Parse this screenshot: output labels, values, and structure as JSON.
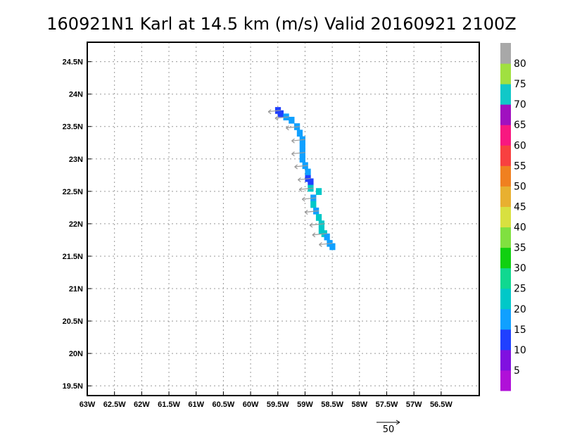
{
  "chart_data": {
    "type": "heatmap",
    "title": "160921N1 Karl at 14.5 km (m/s) Valid 20160921  2100Z",
    "x_ticks": [
      "63W",
      "62.5W",
      "62W",
      "61.5W",
      "61W",
      "60.5W",
      "60W",
      "59.5W",
      "59W",
      "58.5W",
      "58W",
      "57.5W",
      "57W",
      "56.5W"
    ],
    "x_tick_values": [
      -63,
      -62.5,
      -62,
      -61.5,
      -61,
      -60.5,
      -60,
      -59.5,
      -59,
      -58.5,
      -58,
      -57.5,
      -57,
      -56.5
    ],
    "y_ticks": [
      "19.5N",
      "20N",
      "20.5N",
      "21N",
      "21.5N",
      "22N",
      "22.5N",
      "23N",
      "23.5N",
      "24N",
      "24.5N"
    ],
    "y_tick_values": [
      19.5,
      20,
      20.5,
      21,
      21.5,
      22,
      22.5,
      23,
      23.5,
      24,
      24.5
    ],
    "xlim": [
      -63,
      -55.8
    ],
    "ylim": [
      19.35,
      24.8
    ],
    "grid": true,
    "colorbar": {
      "labels": [
        "5",
        "10",
        "15",
        "20",
        "25",
        "30",
        "35",
        "40",
        "45",
        "50",
        "55",
        "60",
        "65",
        "70",
        "75",
        "80"
      ],
      "colors": [
        "#b010d8",
        "#8010e0",
        "#2040ff",
        "#10a0ff",
        "#00c8c8",
        "#10d890",
        "#10d010",
        "#80e040",
        "#d8e040",
        "#e8b030",
        "#f08020",
        "#f84040",
        "#f81880",
        "#a010c0",
        "#10c8c8",
        "#a0e040",
        "#a8a8a8"
      ]
    },
    "wind_cells": [
      {
        "lon": -59.5,
        "lat": 23.75,
        "speed": 12
      },
      {
        "lon": -59.45,
        "lat": 23.7,
        "speed": 14
      },
      {
        "lon": -59.35,
        "lat": 23.65,
        "speed": 18
      },
      {
        "lon": -59.25,
        "lat": 23.6,
        "speed": 16
      },
      {
        "lon": -59.15,
        "lat": 23.5,
        "speed": 18
      },
      {
        "lon": -59.1,
        "lat": 23.4,
        "speed": 16
      },
      {
        "lon": -59.05,
        "lat": 23.3,
        "speed": 17
      },
      {
        "lon": -59.05,
        "lat": 23.2,
        "speed": 18
      },
      {
        "lon": -59.05,
        "lat": 23.1,
        "speed": 17
      },
      {
        "lon": -59.05,
        "lat": 23.0,
        "speed": 18
      },
      {
        "lon": -59.0,
        "lat": 22.9,
        "speed": 16
      },
      {
        "lon": -58.95,
        "lat": 22.8,
        "speed": 18
      },
      {
        "lon": -58.95,
        "lat": 22.7,
        "speed": 13
      },
      {
        "lon": -58.9,
        "lat": 22.65,
        "speed": 11
      },
      {
        "lon": -58.9,
        "lat": 22.55,
        "speed": 20
      },
      {
        "lon": -58.75,
        "lat": 22.5,
        "speed": 22
      },
      {
        "lon": -58.85,
        "lat": 22.4,
        "speed": 19
      },
      {
        "lon": -58.85,
        "lat": 22.3,
        "speed": 20
      },
      {
        "lon": -58.8,
        "lat": 22.2,
        "speed": 19
      },
      {
        "lon": -58.75,
        "lat": 22.1,
        "speed": 20
      },
      {
        "lon": -58.7,
        "lat": 22.0,
        "speed": 22
      },
      {
        "lon": -58.7,
        "lat": 21.9,
        "speed": 24
      },
      {
        "lon": -58.65,
        "lat": 21.85,
        "speed": 22
      },
      {
        "lon": -58.6,
        "lat": 21.8,
        "speed": 15
      },
      {
        "lon": -58.55,
        "lat": 21.7,
        "speed": 16
      },
      {
        "lon": -58.5,
        "lat": 21.65,
        "speed": 18
      }
    ],
    "vector_reference": {
      "label": "50",
      "value": 50
    }
  }
}
